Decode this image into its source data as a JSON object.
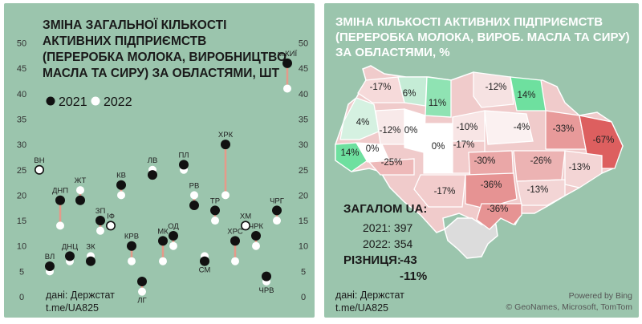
{
  "chart_data": [
    {
      "type": "scatter",
      "title": "ЗМІНА ЗАГАЛЬНОЇ КІЛЬКОСТІ\nАКТИВНИХ ПІДПРИЄМСТВ\n(ПЕРЕРОБКА МОЛОКА, ВИРОБНИЦТВО\nМАСЛА ТА СИРУ) ЗА ОБЛАСТЯМИ, ШТ",
      "ylim": [
        0,
        50
      ],
      "yticks": [
        0,
        5,
        10,
        15,
        20,
        25,
        30,
        35,
        40,
        45,
        50
      ],
      "grid": false,
      "legend_position": "top-left",
      "series": [
        {
          "name": "2021",
          "color": "#111111"
        },
        {
          "name": "2022",
          "color": "#ffffff"
        }
      ],
      "points": [
        {
          "label": "ВН",
          "v2021": 25,
          "v2022": 25
        },
        {
          "label": "ВЛ",
          "v2021": 6,
          "v2022": 5
        },
        {
          "label": "ДНП",
          "v2021": 19,
          "v2022": 14
        },
        {
          "label": "ДНЦ",
          "v2021": 8,
          "v2022": 7
        },
        {
          "label": "ЖТ",
          "v2021": 19,
          "v2022": 21
        },
        {
          "label": "ЗК",
          "v2021": 7,
          "v2022": 8
        },
        {
          "label": "ЗП",
          "v2021": 15,
          "v2022": 13
        },
        {
          "label": "ІФ",
          "v2021": 14,
          "v2022": 14
        },
        {
          "label": "КВ",
          "v2021": 22,
          "v2022": 20
        },
        {
          "label": "КРВ",
          "v2021": 10,
          "v2022": 7
        },
        {
          "label": "ЛГ",
          "v2021": 3,
          "v2022": 1
        },
        {
          "label": "ЛВ",
          "v2021": 24,
          "v2022": 25
        },
        {
          "label": "МК",
          "v2021": 11,
          "v2022": 7
        },
        {
          "label": "ОД",
          "v2021": 12,
          "v2022": 10
        },
        {
          "label": "ПЛ",
          "v2021": 26,
          "v2022": 25
        },
        {
          "label": "РВ",
          "v2021": 18,
          "v2022": 20
        },
        {
          "label": "СМ",
          "v2021": 7,
          "v2022": 8
        },
        {
          "label": "ТР",
          "v2021": 17,
          "v2022": 15
        },
        {
          "label": "ХРК",
          "v2021": 30,
          "v2022": 20
        },
        {
          "label": "ХРС",
          "v2021": 11,
          "v2022": 7
        },
        {
          "label": "ХМ",
          "v2021": 14,
          "v2022": 14
        },
        {
          "label": "ЧРК",
          "v2021": 12,
          "v2022": 10
        },
        {
          "label": "ЧРВ",
          "v2021": 4,
          "v2022": 3
        },
        {
          "label": "ЧРГ",
          "v2021": 17,
          "v2022": 15
        },
        {
          "label": "м.КИЇ",
          "v2021": 46,
          "v2022": 41
        }
      ]
    },
    {
      "type": "map",
      "title": "ЗМІНА КІЛЬКОСТІ АКТИВНИХ ПІДПРИЄМСТВ\n(ПЕРЕРОБКА МОЛОКА, ВИРОБ. МАСЛА ТА СИРУ)\nЗА ОБЛАСТЯМИ, %",
      "regions": [
        {
          "value": "-17%",
          "color": "#f6dada"
        },
        {
          "value": "6%",
          "color": "#c5ecd6"
        },
        {
          "value": "11%",
          "color": "#8fe3b3"
        },
        {
          "value": "-12%",
          "color": "#f6e2e2"
        },
        {
          "value": "14%",
          "color": "#6ee09f"
        },
        {
          "value": "4%",
          "color": "#d5f1e1"
        },
        {
          "value": "-12%",
          "color": "#f8e9e9"
        },
        {
          "value": "0%",
          "color": "#ffffff"
        },
        {
          "value": "-10%",
          "color": "#f8e5e5"
        },
        {
          "value": "-4%",
          "color": "#fbf1f1"
        },
        {
          "value": "-33%",
          "color": "#e89a9a"
        },
        {
          "value": "-67%",
          "color": "#dd5f5f"
        },
        {
          "value": "14%",
          "color": "#6ee09f"
        },
        {
          "value": "0%",
          "color": "#ffffff"
        },
        {
          "value": "0%",
          "color": "#ffffff"
        },
        {
          "value": "-17%",
          "color": "#f2cccc"
        },
        {
          "value": "-25%",
          "color": "#eeb9b9"
        },
        {
          "value": "-30%",
          "color": "#eaa7a7"
        },
        {
          "value": "-26%",
          "color": "#ecb3b3"
        },
        {
          "value": "-13%",
          "color": "#f3d5d5"
        },
        {
          "value": "-17%",
          "color": "#f2cccc"
        },
        {
          "value": "-36%",
          "color": "#e69393"
        },
        {
          "value": "-13%",
          "color": "#f3d5d5"
        },
        {
          "value": "-36%",
          "color": "#e69393"
        }
      ],
      "totals": {
        "heading": "ЗАГАЛОМ UA:",
        "line_2021": "2021: 397",
        "line_2022": "2022: 354",
        "diff_label": "РІЗНИЦЯ:",
        "diff_abs": "-43",
        "diff_pct": "-11%"
      },
      "credit": {
        "powered": "Powered by Bing",
        "copyright": "© GeoNames, Microsoft, TomTom"
      }
    }
  ],
  "source": {
    "line1": "дані: Держстат",
    "line2": "t.me/UA825"
  },
  "colors": {
    "background": "#9bc5ad",
    "connector": "#e59a8a",
    "map_base": "#f0cbcb",
    "crimea": "#dcdcdc"
  }
}
